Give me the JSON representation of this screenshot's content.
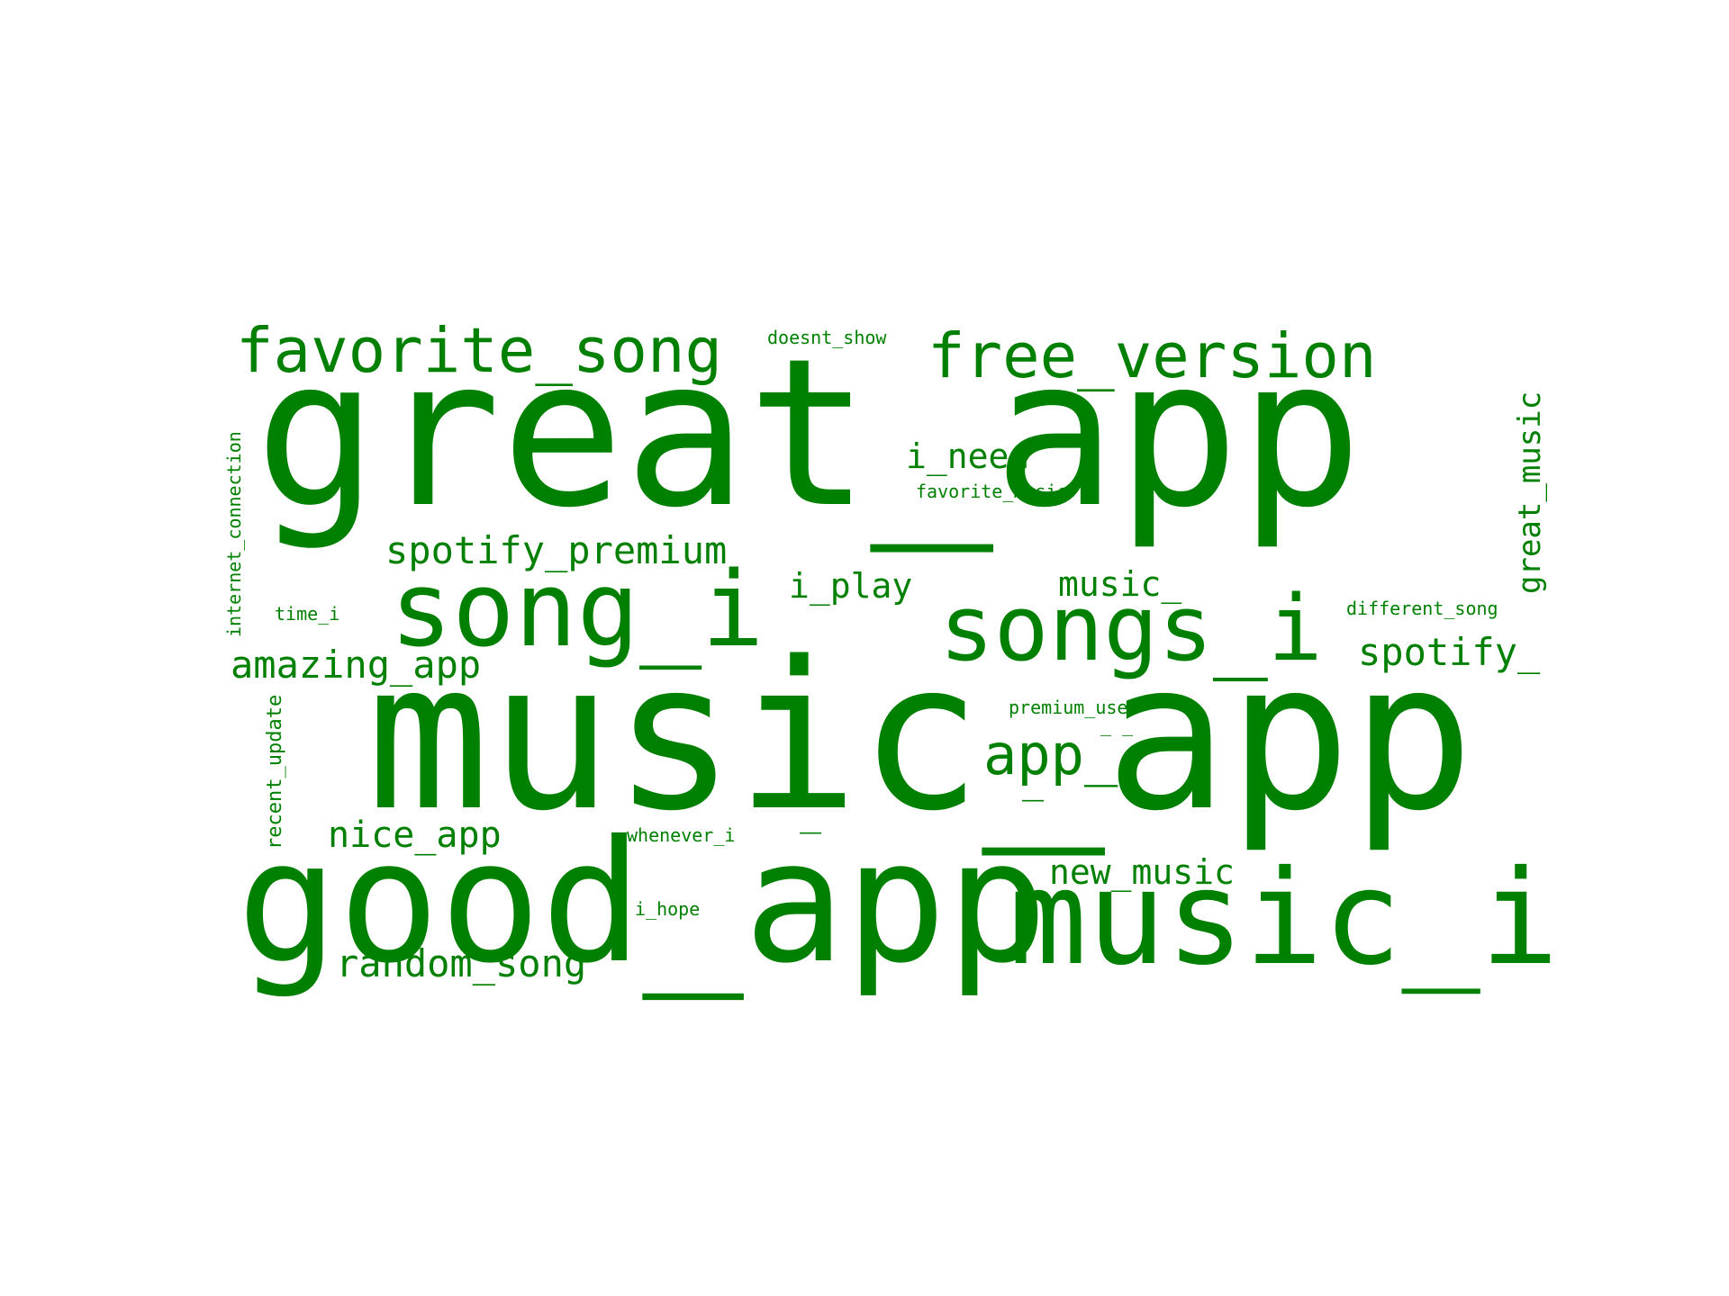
{
  "theme": {
    "word_color": "#008000",
    "background": "#ffffff"
  },
  "words": [
    {
      "text": "great_app",
      "orientation": "horizontal"
    },
    {
      "text": "music_app",
      "orientation": "horizontal"
    },
    {
      "text": "good_app",
      "orientation": "horizontal"
    },
    {
      "text": "music_i",
      "orientation": "horizontal"
    },
    {
      "text": "song_i",
      "orientation": "horizontal"
    },
    {
      "text": "songs_i",
      "orientation": "horizontal"
    },
    {
      "text": "favorite_song",
      "orientation": "horizontal"
    },
    {
      "text": "free_version",
      "orientation": "horizontal"
    },
    {
      "text": "app_",
      "orientation": "horizontal"
    },
    {
      "text": "spotify_premium",
      "orientation": "horizontal"
    },
    {
      "text": "amazing_app",
      "orientation": "horizontal"
    },
    {
      "text": "random_song",
      "orientation": "horizontal"
    },
    {
      "text": "nice_app",
      "orientation": "horizontal"
    },
    {
      "text": "new_music",
      "orientation": "horizontal"
    },
    {
      "text": "i_need",
      "orientation": "horizontal"
    },
    {
      "text": "i_play",
      "orientation": "horizontal"
    },
    {
      "text": "music_",
      "orientation": "horizontal"
    },
    {
      "text": "spotify_",
      "orientation": "horizontal"
    },
    {
      "text": "great_music",
      "orientation": "vertical"
    },
    {
      "text": "internet_connection",
      "orientation": "vertical"
    },
    {
      "text": "recent_update",
      "orientation": "vertical"
    },
    {
      "text": "doesnt_show",
      "orientation": "horizontal"
    },
    {
      "text": "favorite_music",
      "orientation": "horizontal"
    },
    {
      "text": "different_song",
      "orientation": "horizontal"
    },
    {
      "text": "premium_user",
      "orientation": "horizontal"
    },
    {
      "text": "time_i",
      "orientation": "horizontal"
    },
    {
      "text": "whenever_i",
      "orientation": "horizontal"
    },
    {
      "text": "i_hope",
      "orientation": "horizontal"
    },
    {
      "text": "_ _",
      "orientation": "horizontal"
    },
    {
      "text": "_",
      "orientation": "horizontal"
    },
    {
      "text": "_",
      "orientation": "horizontal"
    }
  ]
}
